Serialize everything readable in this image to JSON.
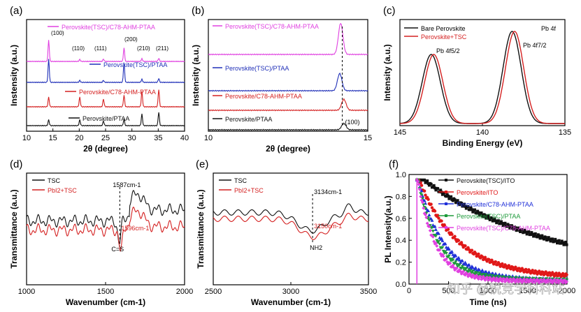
{
  "chart_data": [
    {
      "panel": "(a)",
      "type": "line",
      "xlabel": "2θ (degree)",
      "ylabel": "Instensity (a.u.)",
      "xlim": [
        10,
        40
      ],
      "xticks": [
        10,
        15,
        20,
        25,
        30,
        35,
        40
      ],
      "peak_labels": [
        {
          "text": "(100)",
          "x": 14.2
        },
        {
          "text": "(110)",
          "x": 20.1
        },
        {
          "text": "(111)",
          "x": 24.6
        },
        {
          "text": "(200)",
          "x": 28.5
        },
        {
          "text": "(210)",
          "x": 31.9
        },
        {
          "text": "(211)",
          "x": 35.1
        }
      ],
      "peaks": [
        {
          "x": 14.2,
          "h": 1.0
        },
        {
          "x": 20.1,
          "h": 0.18
        },
        {
          "x": 24.6,
          "h": 0.12
        },
        {
          "x": 28.5,
          "h": 0.75
        },
        {
          "x": 31.9,
          "h": 0.3
        },
        {
          "x": 35.1,
          "h": 0.55
        }
      ],
      "series": [
        {
          "name": "Perovskite(TSC)/C78-AHM-PTAA",
          "color": "#e040e0",
          "scale": [
            0.55,
            0.05,
            0.06,
            0.35,
            0.07,
            0.08
          ]
        },
        {
          "name": "Perovskite(TSC)/PTAA",
          "color": "#1f2fb8",
          "scale": [
            0.6,
            0.05,
            0.05,
            0.5,
            0.08,
            0.1
          ]
        },
        {
          "name": "Perovskite/C78-AHM-PTAA",
          "color": "#d42020",
          "scale": [
            0.25,
            0.25,
            0.2,
            0.3,
            0.4,
            0.45
          ]
        },
        {
          "name": "Perovskite/PTAA",
          "color": "#111111",
          "scale": [
            0.15,
            0.15,
            0.12,
            0.16,
            0.3,
            0.35
          ]
        }
      ]
    },
    {
      "panel": "(b)",
      "type": "line",
      "xlabel": "2θ (degree)",
      "ylabel": "Instensity (a.u.)",
      "xlim": [
        10,
        15
      ],
      "xticks": [
        10,
        15
      ],
      "annotation": "(100)",
      "dashed_x": 14.2,
      "series": [
        {
          "name": "Perovskite(TSC)/C78-AHM-PTAA",
          "color": "#e040e0",
          "peak": 14.15,
          "h": 1.0
        },
        {
          "name": "Perovskite(TSC)/PTAA",
          "color": "#1f2fb8",
          "peak": 14.12,
          "h": 0.55
        },
        {
          "name": "Perovskite/C78-AHM-PTAA",
          "color": "#d42020",
          "peak": 14.25,
          "h": 0.35
        },
        {
          "name": "Perovskite/PTAA",
          "color": "#111111",
          "peak": 14.25,
          "h": 0.2
        }
      ]
    },
    {
      "panel": "(c)",
      "type": "line",
      "xlabel": "Binding Energy (eV)",
      "ylabel": "Intensity (a.u.)",
      "xlim": [
        145,
        135
      ],
      "xticks": [
        145,
        140,
        135
      ],
      "title": "Pb 4f",
      "peak_labels": [
        "Pb 4f5/2",
        "Pb 4f7/2"
      ],
      "series": [
        {
          "name": "Bare Perovskite",
          "color": "#111111",
          "peaks": [
            143.1,
            138.2
          ]
        },
        {
          "name": "Perovskite+TSC",
          "color": "#d42020",
          "peaks": [
            142.95,
            138.05
          ]
        }
      ]
    },
    {
      "panel": "(d)",
      "type": "line",
      "xlabel": "Wavenumber (cm-1)",
      "ylabel": "Transmittance (a.u.)",
      "xlim": [
        1000,
        2000
      ],
      "xticks": [
        1000,
        1500,
        2000
      ],
      "annotations": [
        "1587cm-1",
        "1596cm-1",
        "C=S"
      ],
      "series": [
        {
          "name": "TSC",
          "color": "#111111"
        },
        {
          "name": "PbI2+TSC",
          "color": "#d42020"
        }
      ]
    },
    {
      "panel": "(e)",
      "type": "line",
      "xlabel": "Wavenumber (cm-1)",
      "ylabel": "Transmittance (a.u.)",
      "xlim": [
        2500,
        3500
      ],
      "xticks": [
        2500,
        3000,
        3500
      ],
      "annotations": [
        "3134cm-1",
        "3150cm-1",
        "NH2"
      ],
      "series": [
        {
          "name": "TSC",
          "color": "#111111"
        },
        {
          "name": "PbI2+TSC",
          "color": "#d42020"
        }
      ]
    },
    {
      "panel": "(f)",
      "type": "scatter",
      "xlabel": "Time (ns)",
      "ylabel": "PL Intensity(a.u.)",
      "xlim": [
        0,
        2000
      ],
      "ylim": [
        0,
        1.0
      ],
      "xticks": [
        0,
        500,
        1000,
        1500,
        2000
      ],
      "yticks": [
        0.0,
        0.2,
        0.4,
        0.6,
        0.8,
        1.0
      ],
      "series": [
        {
          "name": "Perovskite(TSC)/ITO",
          "color": "#111111",
          "marker": "square",
          "tau": 1400,
          "a": 0.3
        },
        {
          "name": "Perovskite/ITO",
          "color": "#e01818",
          "marker": "circle",
          "tau": 480,
          "a": 0.1
        },
        {
          "name": "Perovskite/C78-AHM-PTAA",
          "color": "#1f2fd8",
          "marker": "triangle",
          "tau": 320,
          "a": 0.05
        },
        {
          "name": "Perovskite(TSC)/PTAA",
          "color": "#1d9a3a",
          "marker": "triangle-down",
          "tau": 260,
          "a": 0.05
        },
        {
          "name": "Perovskite(TSC)/C78-AHM-PTAA",
          "color": "#e040e0",
          "marker": "diamond",
          "tau": 220,
          "a": 0.04
        }
      ]
    }
  ],
  "labels": {
    "a": "(a)",
    "b": "(b)",
    "c": "(c)",
    "d": "(d)",
    "e": "(e)",
    "f": "(f)"
  },
  "watermark": "知乎 @锐竞学科科站"
}
